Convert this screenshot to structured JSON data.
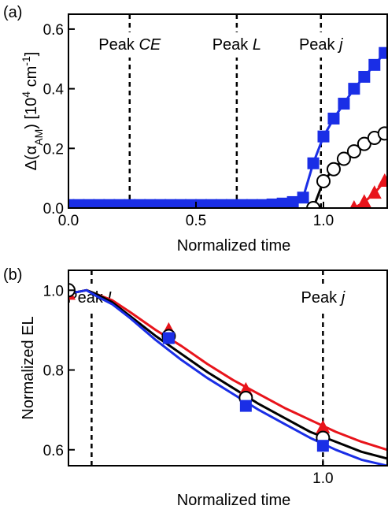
{
  "chart_data": [
    {
      "panel": "(a)",
      "type": "line",
      "xlabel": "Normalized time",
      "ylabel_parts": [
        "Δ(α",
        "AM",
        ") [10",
        "4",
        " cm",
        "-1",
        "]"
      ],
      "xlim": [
        0,
        1.25
      ],
      "ylim": [
        0,
        0.65
      ],
      "xticks": [
        0.0,
        0.5,
        1.0
      ],
      "xtick_labels": [
        "0.0",
        "0.5",
        "1.0"
      ],
      "yticks": [
        0.0,
        0.2,
        0.4,
        0.6
      ],
      "ytick_labels": [
        "0.0",
        "0.2",
        "0.4",
        "0.6"
      ],
      "annotations": [
        {
          "x": 0.24,
          "parts": [
            "Peak ",
            "CE"
          ]
        },
        {
          "x": 0.66,
          "parts": [
            "Peak ",
            "L"
          ]
        },
        {
          "x": 0.99,
          "parts": [
            "Peak ",
            "j"
          ]
        }
      ],
      "series": [
        {
          "color": "#1a2ee6",
          "marker": "square",
          "filled": true,
          "x": [
            0.0,
            0.04,
            0.08,
            0.12,
            0.16,
            0.2,
            0.24,
            0.28,
            0.32,
            0.36,
            0.4,
            0.44,
            0.48,
            0.52,
            0.56,
            0.6,
            0.64,
            0.68,
            0.72,
            0.76,
            0.8,
            0.84,
            0.88,
            0.92,
            0.96,
            1.0,
            1.04,
            1.08,
            1.12,
            1.16,
            1.2,
            1.24
          ],
          "y": [
            0.01,
            0.01,
            0.01,
            0.01,
            0.01,
            0.01,
            0.01,
            0.01,
            0.01,
            0.01,
            0.01,
            0.01,
            0.01,
            0.01,
            0.01,
            0.01,
            0.01,
            0.01,
            0.01,
            0.01,
            0.012,
            0.015,
            0.02,
            0.035,
            0.15,
            0.24,
            0.3,
            0.35,
            0.4,
            0.44,
            0.48,
            0.52
          ]
        },
        {
          "color": "#000000",
          "marker": "circle",
          "filled": false,
          "x": [
            0.96,
            1.0,
            1.04,
            1.08,
            1.12,
            1.16,
            1.2,
            1.24
          ],
          "y": [
            0.0,
            0.09,
            0.13,
            0.165,
            0.19,
            0.215,
            0.235,
            0.25
          ]
        },
        {
          "color": "#e8141b",
          "marker": "triangle",
          "filled": true,
          "x": [
            1.12,
            1.16,
            1.2,
            1.24
          ],
          "y": [
            0.0,
            0.02,
            0.05,
            0.09
          ]
        }
      ]
    },
    {
      "panel": "(b)",
      "type": "line",
      "xlabel": "Normalized time",
      "ylabel": "Normalized EL",
      "xlim": [
        0.01,
        1.25
      ],
      "ylim": [
        0.56,
        1.05
      ],
      "xticks": [
        1.0
      ],
      "xtick_labels": [
        "1.0"
      ],
      "yticks": [
        0.6,
        0.8,
        1.0
      ],
      "ytick_labels": [
        "0.6",
        "0.8",
        "1.0"
      ],
      "annotations": [
        {
          "x": 0.1,
          "parts": [
            "Peak ",
            "L"
          ]
        },
        {
          "x": 1.0,
          "parts": [
            "Peak ",
            "j"
          ]
        }
      ],
      "series": [
        {
          "color": "#e8141b",
          "marker": "triangle",
          "filled": true,
          "x": [
            0.01,
            0.04,
            0.08,
            0.12,
            0.18,
            0.25,
            0.35,
            0.45,
            0.55,
            0.65,
            0.75,
            0.85,
            0.95,
            1.05,
            1.15,
            1.25
          ],
          "y": [
            1.0,
            0.995,
            1.0,
            0.99,
            0.975,
            0.945,
            0.9,
            0.86,
            0.815,
            0.775,
            0.74,
            0.705,
            0.675,
            0.645,
            0.62,
            0.6
          ],
          "marker_x": [
            0.01,
            0.4,
            0.7,
            1.0
          ],
          "marker_y": [
            0.99,
            0.9,
            0.75,
            0.655
          ]
        },
        {
          "color": "#000000",
          "marker": "circle",
          "filled": false,
          "x": [
            0.01,
            0.04,
            0.08,
            0.12,
            0.18,
            0.25,
            0.35,
            0.45,
            0.55,
            0.65,
            0.75,
            0.85,
            0.95,
            1.05,
            1.15,
            1.25
          ],
          "y": [
            1.0,
            0.995,
            1.0,
            0.99,
            0.97,
            0.935,
            0.885,
            0.84,
            0.795,
            0.755,
            0.715,
            0.68,
            0.645,
            0.62,
            0.595,
            0.578
          ],
          "marker_x": [
            0.01,
            0.4,
            0.7,
            1.0
          ],
          "marker_y": [
            1.0,
            0.885,
            0.73,
            0.63
          ]
        },
        {
          "color": "#1a2ee6",
          "marker": "square",
          "filled": true,
          "x": [
            0.01,
            0.04,
            0.08,
            0.12,
            0.18,
            0.25,
            0.35,
            0.45,
            0.55,
            0.65,
            0.75,
            0.85,
            0.95,
            1.05,
            1.15,
            1.25
          ],
          "y": [
            1.0,
            0.995,
            1.0,
            0.985,
            0.965,
            0.93,
            0.875,
            0.825,
            0.78,
            0.74,
            0.7,
            0.665,
            0.63,
            0.6,
            0.575,
            0.56
          ],
          "marker_x": [
            0.4,
            0.7,
            1.0
          ],
          "marker_y": [
            0.88,
            0.71,
            0.61
          ]
        }
      ]
    }
  ]
}
